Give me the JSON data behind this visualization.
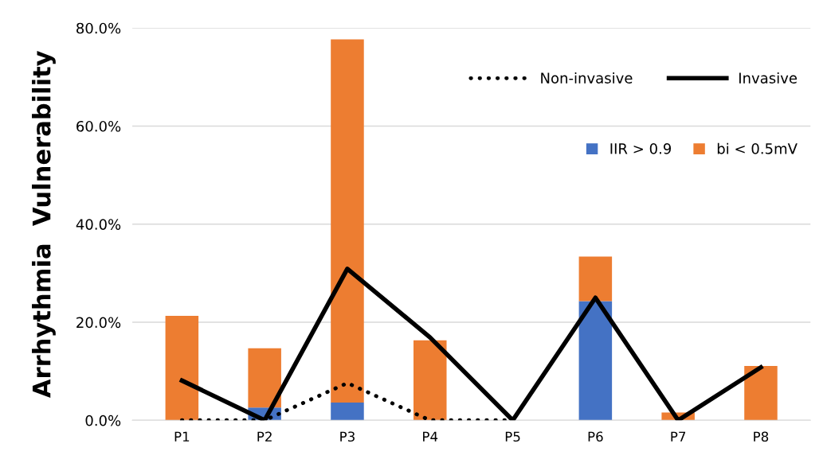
{
  "chart_data": {
    "type": "bar",
    "stacked": true,
    "ylabel": "Arrhythmia  Vulnerability",
    "categories": [
      "P1",
      "P2",
      "P3",
      "P4",
      "P5",
      "P6",
      "P7",
      "P8"
    ],
    "ylim": [
      0,
      80
    ],
    "yticks": [
      {
        "value": 0,
        "label": "0.0%"
      },
      {
        "value": 20,
        "label": "20.0%"
      },
      {
        "value": 40,
        "label": "40.0%"
      },
      {
        "value": 60,
        "label": "60.0%"
      },
      {
        "value": 80,
        "label": "80.0%"
      }
    ],
    "grid": "y",
    "legend": "top right",
    "series": [
      {
        "name": "IIR > 0.9",
        "color": "#4472c4",
        "values": [
          0,
          2.6,
          3.6,
          0,
          0,
          24.3,
          0,
          0
        ]
      },
      {
        "name": "bi < 0.5mV",
        "color": "#ed7d31",
        "values": [
          21.3,
          12.1,
          74.1,
          16.3,
          0,
          9.1,
          1.6,
          11.1
        ]
      },
      {
        "name": "Non-invasive",
        "type": "line",
        "line_style": "dotted",
        "color": "#000000",
        "values": [
          0,
          0,
          7.6,
          0,
          0,
          null,
          null,
          null
        ]
      },
      {
        "name": "Invasive",
        "type": "line",
        "line_style": "solid",
        "color": "#000000",
        "values": [
          8.1,
          0,
          30.9,
          16.9,
          0,
          25.0,
          0,
          10.8
        ]
      }
    ]
  }
}
